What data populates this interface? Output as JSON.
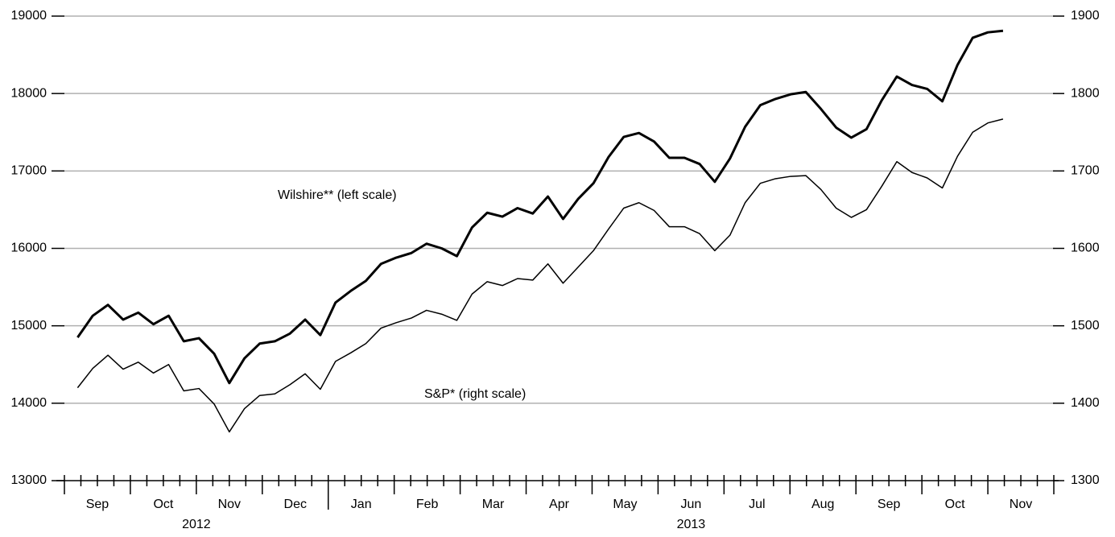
{
  "chart_data": {
    "type": "line",
    "annotations": [
      {
        "text": "Wilshire** (left scale)",
        "series": 0
      },
      {
        "text": "S&P* (right scale)",
        "series": 1
      }
    ],
    "x": [
      0.2,
      0.43,
      0.66,
      0.89,
      1.12,
      1.35,
      1.58,
      1.81,
      2.04,
      2.27,
      2.5,
      2.73,
      2.96,
      3.19,
      3.42,
      3.65,
      3.88,
      4.11,
      4.34,
      4.57,
      4.8,
      5.03,
      5.26,
      5.49,
      5.72,
      5.95,
      6.18,
      6.41,
      6.64,
      6.87,
      7.1,
      7.33,
      7.56,
      7.79,
      8.02,
      8.25,
      8.48,
      8.71,
      8.94,
      9.17,
      9.4,
      9.63,
      9.86,
      10.09,
      10.32,
      10.55,
      10.78,
      11.01,
      11.24,
      11.47,
      11.7,
      11.93,
      12.16,
      12.39,
      12.62,
      12.85,
      13.08,
      13.31,
      13.54,
      13.77,
      14.0,
      14.23
    ],
    "xlim": [
      0,
      15
    ],
    "xticks": [
      0,
      1,
      2,
      3,
      4,
      5,
      6,
      7,
      8,
      9,
      10,
      11,
      12,
      13,
      14,
      15
    ],
    "month_labels": [
      "Sep",
      "Oct",
      "Nov",
      "Dec",
      "Jan",
      "Feb",
      "Mar",
      "Apr",
      "May",
      "Jun",
      "Jul",
      "Aug",
      "Sep",
      "Oct",
      "Nov"
    ],
    "years": [
      {
        "label": "2012",
        "from": 0,
        "to": 4
      },
      {
        "label": "2013",
        "from": 4,
        "to": 15
      }
    ],
    "ylim": [
      13000,
      19000
    ],
    "yticks": [
      13000,
      14000,
      15000,
      16000,
      17000,
      18000,
      19000
    ],
    "y2lim": [
      1300,
      1900
    ],
    "y2ticks": [
      1300,
      1400,
      1500,
      1600,
      1700,
      1800,
      1900
    ],
    "grid": true,
    "series": [
      {
        "name": "Wilshire",
        "color": "#000000",
        "width": 3,
        "values": [
          14850,
          15130,
          15270,
          15080,
          15170,
          15020,
          15130,
          14800,
          14840,
          14640,
          14260,
          14580,
          14770,
          14800,
          14900,
          15080,
          14880,
          15300,
          15450,
          15580,
          15800,
          15880,
          15940,
          16060,
          16000,
          15900,
          16270,
          16460,
          16410,
          16520,
          16450,
          16670,
          16380,
          16640,
          16840,
          17180,
          17440,
          17490,
          17380,
          17170,
          17170,
          17090,
          16860,
          17160,
          17570,
          17850,
          17930,
          17990,
          18020,
          17800,
          17560,
          17430,
          17540,
          17910,
          18220,
          18110,
          18060,
          17900,
          18370,
          18720,
          18790,
          18810
        ]
      },
      {
        "name": "S&P",
        "color": "#000000",
        "width": 1.5,
        "axis": "y2",
        "values": [
          1420,
          1445,
          1462,
          1444,
          1453,
          1439,
          1450,
          1416,
          1419,
          1399,
          1363,
          1393,
          1410,
          1412,
          1424,
          1438,
          1418,
          1454,
          1465,
          1477,
          1497,
          1504,
          1510,
          1520,
          1515,
          1507,
          1541,
          1557,
          1552,
          1561,
          1559,
          1580,
          1555,
          1576,
          1597,
          1625,
          1652,
          1659,
          1649,
          1628,
          1628,
          1619,
          1597,
          1617,
          1659,
          1684,
          1690,
          1693,
          1694,
          1676,
          1652,
          1640,
          1650,
          1680,
          1712,
          1698,
          1691,
          1678,
          1719,
          1750,
          1762,
          1767
        ]
      }
    ]
  }
}
